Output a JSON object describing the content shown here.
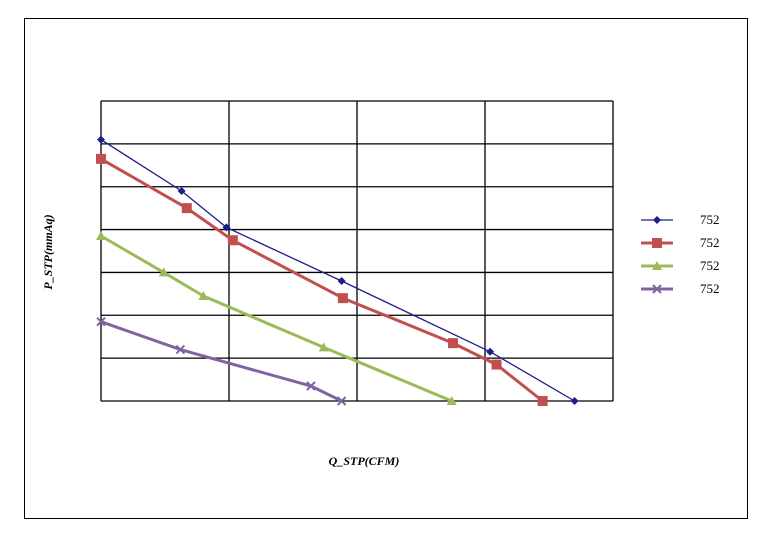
{
  "chart_data": {
    "type": "line",
    "xlabel": "Q_STP(CFM)",
    "ylabel": "P_STP(mmAq)",
    "xlim": [
      0,
      4
    ],
    "ylim": [
      0,
      7
    ],
    "grid": true,
    "legend_position": "right",
    "series": [
      {
        "name": "752",
        "color": "#1b1e8c",
        "marker": "diamond",
        "points": [
          [
            0,
            6.1
          ],
          [
            0.63,
            4.9
          ],
          [
            0.98,
            4.05
          ],
          [
            1.88,
            2.8
          ],
          [
            3.04,
            1.15
          ],
          [
            3.7,
            0
          ]
        ]
      },
      {
        "name": "752",
        "color": "#c0504d",
        "marker": "square",
        "points": [
          [
            0,
            5.65
          ],
          [
            0.67,
            4.5
          ],
          [
            1.03,
            3.75
          ],
          [
            1.89,
            2.4
          ],
          [
            2.75,
            1.35
          ],
          [
            3.09,
            0.85
          ],
          [
            3.45,
            0
          ]
        ]
      },
      {
        "name": "752",
        "color": "#9bbb59",
        "marker": "triangle",
        "points": [
          [
            0,
            3.85
          ],
          [
            0.49,
            3.0
          ],
          [
            0.8,
            2.45
          ],
          [
            1.74,
            1.25
          ],
          [
            2.74,
            0
          ]
        ]
      },
      {
        "name": "752",
        "color": "#8064a2",
        "marker": "x",
        "points": [
          [
            0,
            1.85
          ],
          [
            0.62,
            1.2
          ],
          [
            1.64,
            0.35
          ],
          [
            1.88,
            0
          ]
        ]
      }
    ]
  }
}
